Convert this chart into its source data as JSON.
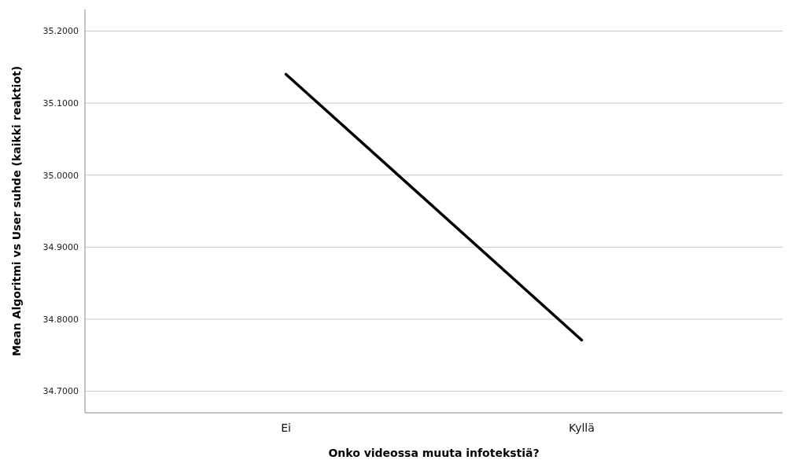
{
  "chart_data": {
    "type": "line",
    "xlabel": "Onko videossa muuta infotekstiä?",
    "ylabel": "Mean Algoritmi vs User suhde (kaikki reaktiot)",
    "categories": [
      "Ei",
      "Kyllä"
    ],
    "series": [
      {
        "color": "#000000",
        "values": [
          35.14,
          34.771
        ]
      }
    ],
    "ylim": [
      34.67,
      35.23
    ],
    "yticks": [
      {
        "value": 34.7,
        "label": "34.7000"
      },
      {
        "value": 34.8,
        "label": "34.8000"
      },
      {
        "value": 34.9,
        "label": "34.9000"
      },
      {
        "value": 35.0,
        "label": "35.0000"
      },
      {
        "value": 35.1,
        "label": "35.1000"
      },
      {
        "value": 35.2,
        "label": "35.2000"
      }
    ],
    "grid": "y",
    "marker": "none",
    "line_style": "solid"
  }
}
